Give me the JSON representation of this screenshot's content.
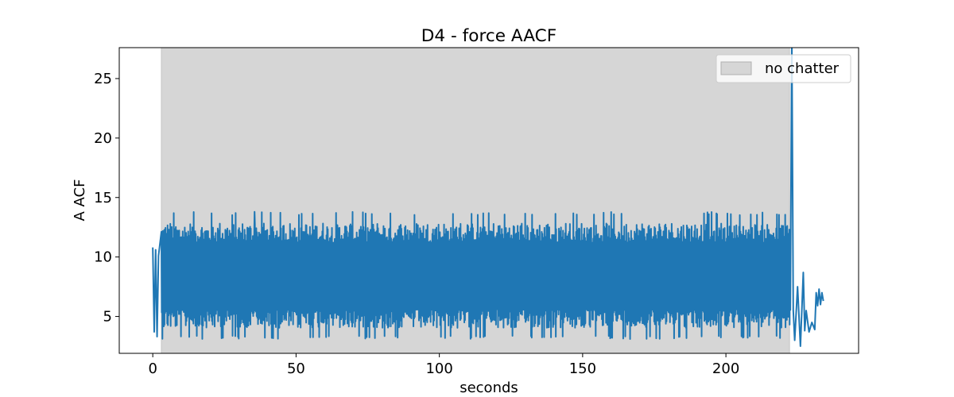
{
  "chart_data": {
    "type": "line",
    "title": "D4 - force AACF",
    "xlabel": "seconds",
    "ylabel": "A ACF",
    "xlim": [
      -11.7,
      246.3
    ],
    "ylim": [
      1.9,
      27.6
    ],
    "x_ticks": [
      0,
      50,
      100,
      150,
      200
    ],
    "y_ticks": [
      5,
      10,
      15,
      20,
      25
    ],
    "grid": false,
    "legend": {
      "placement": "top-right",
      "entries": [
        {
          "label": "no chatter",
          "kind": "shaded-region"
        }
      ]
    },
    "shaded_regions": [
      {
        "name": "no chatter",
        "x_start": 3.0,
        "x_end": 222.2,
        "color": "#d6d6d6"
      }
    ],
    "series": [
      {
        "color": "#1f77b4",
        "summary": {
          "x_start": 0.0,
          "x_end": 234.0,
          "dense_band_start": 0.0,
          "dense_band_end": 222.5,
          "dense_band_lower": 4.3,
          "dense_band_upper": 12.6,
          "dense_band_min": 3.1,
          "dense_band_max": 13.8
        },
        "points": [
          [
            0.0,
            10.8
          ],
          [
            0.5,
            3.7
          ],
          [
            1.0,
            10.6
          ],
          [
            1.5,
            3.3
          ],
          [
            2.0,
            10.1
          ],
          [
            3.0,
            11.9
          ],
          [
            35.5,
            13.8
          ],
          [
            222.5,
            12.0
          ],
          [
            223.0,
            28.5
          ],
          [
            223.5,
            5.5
          ],
          [
            224.0,
            3.0
          ],
          [
            225.0,
            7.5
          ],
          [
            226.0,
            2.5
          ],
          [
            227.0,
            8.7
          ],
          [
            227.5,
            3.8
          ],
          [
            228.0,
            5.5
          ],
          [
            229.0,
            3.7
          ],
          [
            230.0,
            4.5
          ],
          [
            231.0,
            3.9
          ],
          [
            231.5,
            7.0
          ],
          [
            232.0,
            5.9
          ],
          [
            232.5,
            7.3
          ],
          [
            233.0,
            6.0
          ],
          [
            233.5,
            7.0
          ],
          [
            234.0,
            6.3
          ]
        ]
      }
    ]
  }
}
